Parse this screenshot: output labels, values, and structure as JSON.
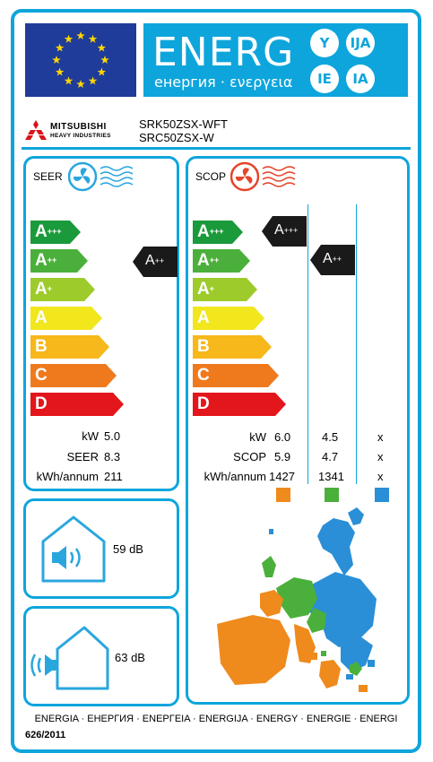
{
  "header": {
    "energ_word": "ENERG",
    "energ_sub": "енергия · ενεργεια",
    "circles": [
      "Y",
      "IJA",
      "IE",
      "IA"
    ]
  },
  "brand": {
    "logo_line1": "MITSUBISHI",
    "logo_line2": "HEAVY INDUSTRIES"
  },
  "models": [
    "SRK50ZSX-WFT",
    "SRC50ZSX-W"
  ],
  "scale": [
    {
      "letter": "A",
      "sup": "+++",
      "color": "#1a9a3a"
    },
    {
      "letter": "A",
      "sup": "++",
      "color": "#4bb03b"
    },
    {
      "letter": "A",
      "sup": "+",
      "color": "#9dcb2b"
    },
    {
      "letter": "A",
      "sup": "",
      "color": "#f2e61c"
    },
    {
      "letter": "B",
      "sup": "",
      "color": "#f6b81a"
    },
    {
      "letter": "C",
      "sup": "",
      "color": "#ef7a1d"
    },
    {
      "letter": "D",
      "sup": "",
      "color": "#e3161b"
    }
  ],
  "seer": {
    "title": "SEER",
    "rating": {
      "letter": "A",
      "sup": "++"
    },
    "rows": [
      {
        "label": "kW",
        "value": "5.0"
      },
      {
        "label": "SEER",
        "value": "8.3"
      },
      {
        "label": "kWh/annum",
        "value": "211"
      }
    ]
  },
  "scop": {
    "title": "SCOP",
    "ratings": [
      {
        "letter": "A",
        "sup": "+++"
      },
      {
        "letter": "A",
        "sup": "++"
      }
    ],
    "rows": [
      {
        "label": "kW",
        "values": [
          "6.0",
          "4.5",
          "x"
        ]
      },
      {
        "label": "SCOP",
        "values": [
          "5.9",
          "4.7",
          "x"
        ]
      },
      {
        "label": "kWh/annum",
        "values": [
          "1427",
          "1341",
          "x"
        ]
      }
    ],
    "zone_colors": [
      "#ef8a1d",
      "#4bb03b",
      "#2a8fd6"
    ]
  },
  "noise": {
    "indoor": "59 dB",
    "outdoor": "63 dB"
  },
  "footer": {
    "languages": "ENERGIA · ЕНЕРГИЯ · ΕΝΕΡΓΕΙΑ · ENERGIJA · ENERGY · ENERGIE · ENERGI",
    "regulation": "626/2011"
  }
}
